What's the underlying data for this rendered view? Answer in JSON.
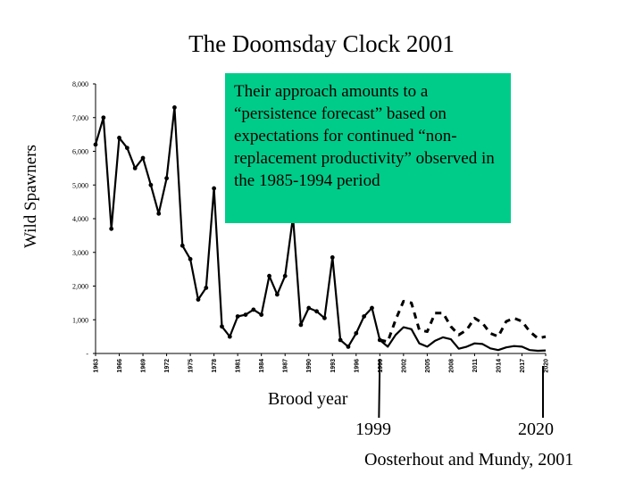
{
  "chart_data": {
    "type": "line",
    "title": "The Doomsday Clock 2001",
    "ylabel": "Wild Spawners",
    "xlabel": "Brood year",
    "ylim": [
      0,
      8000
    ],
    "xlim": [
      1963,
      2020
    ],
    "y_ticks": [
      "-",
      "1,000",
      "2,000",
      "3,000",
      "4,000",
      "5,000",
      "6,000",
      "7,000",
      "8,000"
    ],
    "y_tick_values": [
      0,
      1000,
      2000,
      3000,
      4000,
      5000,
      6000,
      7000,
      8000
    ],
    "x_ticks": [
      "1963",
      "1966",
      "1969",
      "1972",
      "1975",
      "1978",
      "1981",
      "1984",
      "1987",
      "1990",
      "1993",
      "1996",
      "1999",
      "2002",
      "2005",
      "2008",
      "2011",
      "2014",
      "2017",
      "2020"
    ],
    "x_tick_values": [
      1963,
      1966,
      1969,
      1972,
      1975,
      1978,
      1981,
      1984,
      1987,
      1990,
      1993,
      1996,
      1999,
      2002,
      2005,
      2008,
      2011,
      2014,
      2017,
      2020
    ],
    "series": [
      {
        "style": "solid-markers",
        "x": [
          1963,
          1964,
          1965,
          1966,
          1967,
          1968,
          1969,
          1970,
          1971,
          1972,
          1973,
          1974,
          1975,
          1976,
          1977,
          1978,
          1979,
          1980,
          1981,
          1982,
          1983,
          1984,
          1985,
          1986,
          1987,
          1988,
          1989,
          1990,
          1991,
          1992,
          1993,
          1994,
          1995,
          1996,
          1997,
          1998,
          1999
        ],
        "y": [
          6200,
          7000,
          3700,
          6400,
          6100,
          5500,
          5800,
          5000,
          4150,
          5200,
          7300,
          3200,
          2800,
          1600,
          1950,
          4900,
          800,
          500,
          1100,
          1150,
          1300,
          1150,
          2300,
          1750,
          2300,
          4050,
          850,
          1350,
          1250,
          1050,
          2850,
          400,
          200,
          600,
          1100,
          1350,
          400
        ]
      },
      {
        "style": "solid",
        "x": [
          1999,
          2000,
          2001,
          2002,
          2003,
          2004,
          2005,
          2006,
          2007,
          2008,
          2009,
          2010,
          2011,
          2012,
          2013,
          2014,
          2015,
          2016,
          2017,
          2018,
          2019,
          2020
        ],
        "y": [
          400,
          200,
          550,
          780,
          720,
          300,
          200,
          380,
          480,
          420,
          140,
          200,
          300,
          280,
          150,
          100,
          180,
          220,
          200,
          100,
          80,
          90
        ]
      },
      {
        "style": "dashed",
        "x": [
          1999,
          2000,
          2001,
          2002,
          2003,
          2004,
          2005,
          2006,
          2007,
          2008,
          2009,
          2010,
          2011,
          2012,
          2013,
          2014,
          2015,
          2016,
          2017,
          2018,
          2019,
          2020
        ],
        "y": [
          400,
          350,
          1000,
          1550,
          1500,
          700,
          650,
          1200,
          1200,
          800,
          550,
          700,
          1050,
          900,
          600,
          500,
          950,
          1050,
          950,
          650,
          450,
          500
        ]
      }
    ]
  },
  "annotation": "Their approach amounts to a “persistence forecast” based on expectations for continued “non-replacement productivity” observed in the 1985-1994 period",
  "markers": {
    "start_label": "1999",
    "start_year": 1999,
    "end_label": "2020",
    "end_year": 2020
  },
  "source": "Oosterhout and Mundy, 2001",
  "colors": {
    "annotation_bg": "#00cc8a",
    "line": "#000000"
  }
}
